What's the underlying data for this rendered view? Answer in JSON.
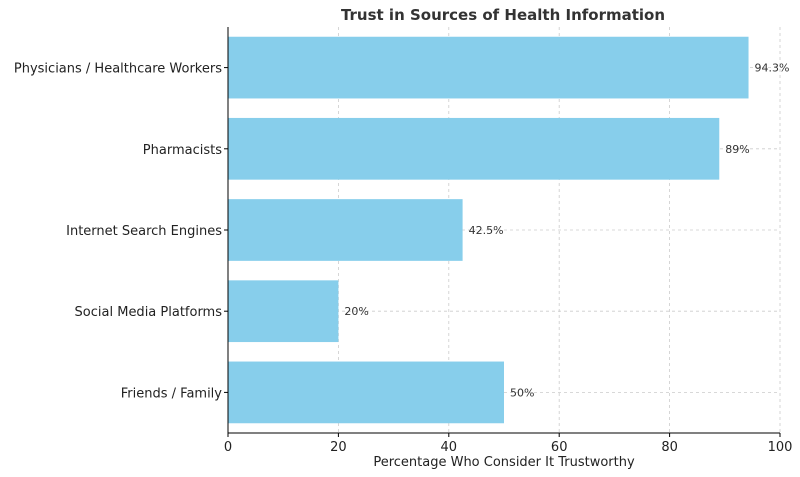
{
  "chart_data": {
    "type": "bar",
    "orientation": "horizontal",
    "title": "Trust in Sources of Health Information",
    "xlabel": "Percentage Who Consider It Trustworthy",
    "ylabel": "",
    "categories": [
      "Physicians / Healthcare Workers",
      "Pharmacists",
      "Internet Search Engines",
      "Social Media Platforms",
      "Friends / Family"
    ],
    "values": [
      94.3,
      89,
      42.5,
      20,
      50
    ],
    "value_labels": [
      "94.3%",
      "89%",
      "42.5%",
      "20%",
      "50%"
    ],
    "xlim": [
      0,
      100
    ],
    "xticks": [
      "0",
      "20",
      "40",
      "60",
      "80",
      "100"
    ],
    "grid": true,
    "bar_color": "#87CEEB"
  }
}
